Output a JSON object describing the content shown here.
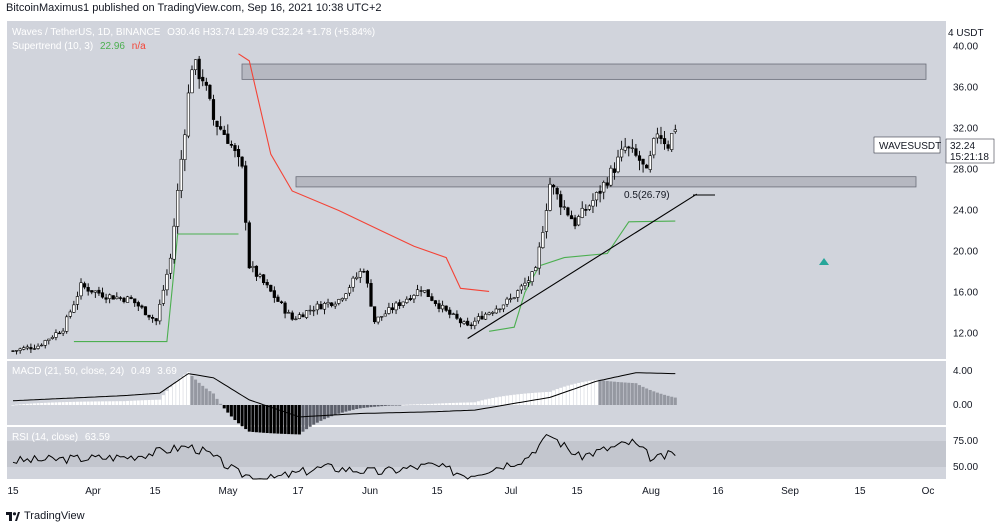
{
  "header": {
    "publisher": "BitcoinMaximus1 published on TradingView.com, Sep 16, 2021 10:38 UTC+2"
  },
  "legend": {
    "symbol": "Waves / TetherUS, 1D, BINANCE",
    "ohlc": "O30.46  H33.74  L29.49  C32.24  +1.78 (+5.84%)",
    "supertrend_label": "Supertrend (10, 3)",
    "supertrend_value": "22.96",
    "supertrend_na": "n/a",
    "macd_label": "MACD (21, 50, close, 24)",
    "macd_v1": "0.49",
    "macd_v2": "3.69",
    "rsi_label": "RSI (14, close)",
    "rsi_value": "63.59"
  },
  "annotations": {
    "fib_label": "0.5(26.79)",
    "ticker_tag": "WAVESUSDT",
    "last_price": "32.24",
    "countdown": "15:21:18"
  },
  "footer": {
    "brand": "TradingView"
  },
  "colors": {
    "panel_bg": "#d1d4dc",
    "candle_up": "#ffffff",
    "candle_down": "#000000",
    "supertrend_up": "#4caf50",
    "supertrend_down": "#f44336",
    "zone_fill": "#b2b5be",
    "trendline": "#000000",
    "arrow": "#26a69a"
  },
  "chart_data": [
    {
      "type": "candlestick",
      "title": "Waves / TetherUS, 1D, BINANCE",
      "y_axis_label": "USDT",
      "y_unit_label": "4",
      "y_ticks": [
        "40.00",
        "36.00",
        "32.00",
        "28.00",
        "24.00",
        "20.00",
        "16.00",
        "12.00"
      ],
      "ylim": [
        9.5,
        42.5
      ],
      "x_ticks": [
        "15",
        "Apr",
        "15",
        "May",
        "17",
        "Jun",
        "15",
        "Jul",
        "15",
        "Aug",
        "16",
        "Sep",
        "15",
        "Oc"
      ],
      "close_path": [
        [
          "Mar 15",
          10.3
        ],
        [
          "Mar 22",
          10.8
        ],
        [
          "Mar 29",
          12.5
        ],
        [
          "Apr 3",
          16.6
        ],
        [
          "Apr 10",
          15.7
        ],
        [
          "Apr 17",
          15.3
        ],
        [
          "Apr 24",
          13.2
        ],
        [
          "Apr 28",
          19.3
        ],
        [
          "May 1",
          29.0
        ],
        [
          "May 4",
          38.3
        ],
        [
          "May 7",
          37.0
        ],
        [
          "May 10",
          32.9
        ],
        [
          "May 14",
          31.1
        ],
        [
          "May 18",
          27.9
        ],
        [
          "May 20",
          18.6
        ],
        [
          "May 24",
          16.9
        ],
        [
          "Jun 1",
          13.4
        ],
        [
          "Jun 7",
          14.5
        ],
        [
          "Jun 14",
          15.3
        ],
        [
          "Jun 21",
          18.4
        ],
        [
          "Jun 24",
          13.2
        ],
        [
          "Jun 30",
          14.7
        ],
        [
          "Jul 7",
          16.4
        ],
        [
          "Jul 14",
          14.1
        ],
        [
          "Jul 20",
          12.6
        ],
        [
          "Jul 24",
          13.7
        ],
        [
          "Aug 1",
          15.3
        ],
        [
          "Aug 8",
          18.0
        ],
        [
          "Aug 12",
          26.6
        ],
        [
          "Aug 15",
          24.8
        ],
        [
          "Aug 19",
          22.8
        ],
        [
          "Aug 25",
          25.4
        ],
        [
          "Aug 30",
          28.2
        ],
        [
          "Sep 2",
          30.1
        ],
        [
          "Sep 6",
          28.9
        ],
        [
          "Sep 8",
          27.5
        ],
        [
          "Sep 11",
          31.8
        ],
        [
          "Sep 14",
          30.46
        ],
        [
          "Sep 16",
          32.24
        ]
      ],
      "supertrend_up_segments": [
        [
          [
            "Apr 1",
            11.2
          ],
          [
            "Apr 27",
            11.2
          ],
          [
            "Apr 30",
            21.7
          ],
          [
            "May 17",
            21.7
          ]
        ],
        [
          [
            "Jul 26",
            12.2
          ],
          [
            "Aug 2",
            12.6
          ],
          [
            "Aug 5",
            16.0
          ],
          [
            "Aug 9",
            18.6
          ],
          [
            "Aug 16",
            19.4
          ],
          [
            "Aug 28",
            19.8
          ],
          [
            "Sep 3",
            22.9
          ],
          [
            "Sep 16",
            22.96
          ]
        ]
      ],
      "supertrend_down_segments": [
        [
          [
            "May 17",
            39.3
          ],
          [
            "May 20",
            38.6
          ],
          [
            "May 26",
            29.5
          ],
          [
            "Jun 1",
            25.9
          ],
          [
            "Jun 14",
            24.0
          ],
          [
            "Jun 26",
            22.0
          ],
          [
            "Jul 5",
            20.5
          ],
          [
            "Jul 14",
            19.4
          ],
          [
            "Jul 18",
            16.4
          ],
          [
            "Jul 26",
            16.1
          ]
        ]
      ],
      "zones": [
        {
          "y_low": 36.8,
          "y_high": 38.3
        },
        {
          "y_low": 26.3,
          "y_high": 27.3
        }
      ],
      "trendline": [
        [
          "Jul 20",
          11.5
        ],
        [
          "Sep 22",
          25.6
        ]
      ]
    },
    {
      "type": "line",
      "title": "MACD (21, 50, close, 24)",
      "y_ticks": [
        "4.00",
        "0.00"
      ],
      "series": [
        {
          "name": "MACD",
          "points": [
            [
              "Mar 15",
              0.5
            ],
            [
              "Apr 15",
              1.1
            ],
            [
              "Apr 25",
              1.4
            ],
            [
              "May 3",
              3.7
            ],
            [
              "May 10",
              3.2
            ],
            [
              "May 20",
              0.6
            ],
            [
              "Jun 3",
              -1.4
            ],
            [
              "Jun 20",
              -1.0
            ],
            [
              "Jul 10",
              -0.8
            ],
            [
              "Jul 22",
              -0.6
            ],
            [
              "Aug 12",
              0.9
            ],
            [
              "Aug 25",
              2.8
            ],
            [
              "Sep 5",
              3.8
            ],
            [
              "Sep 16",
              3.69
            ]
          ]
        }
      ]
    },
    {
      "type": "line",
      "title": "RSI (14, close)",
      "y_ticks": [
        "75.00",
        "50.00"
      ],
      "series": [
        {
          "name": "RSI",
          "points": [
            [
              "Mar 15",
              56
            ],
            [
              "Apr 1",
              58
            ],
            [
              "Apr 17",
              60
            ],
            [
              "May 3",
              70
            ],
            [
              "May 8",
              64
            ],
            [
              "May 17",
              44
            ],
            [
              "May 25",
              38
            ],
            [
              "Jun 10",
              50
            ],
            [
              "Jun 25",
              45
            ],
            [
              "Jul 10",
              52
            ],
            [
              "Jul 20",
              42
            ],
            [
              "Aug 5",
              58
            ],
            [
              "Aug 12",
              81
            ],
            [
              "Aug 20",
              60
            ],
            [
              "Sep 4",
              74
            ],
            [
              "Sep 10",
              57
            ],
            [
              "Sep 16",
              63.59
            ]
          ]
        }
      ]
    }
  ]
}
